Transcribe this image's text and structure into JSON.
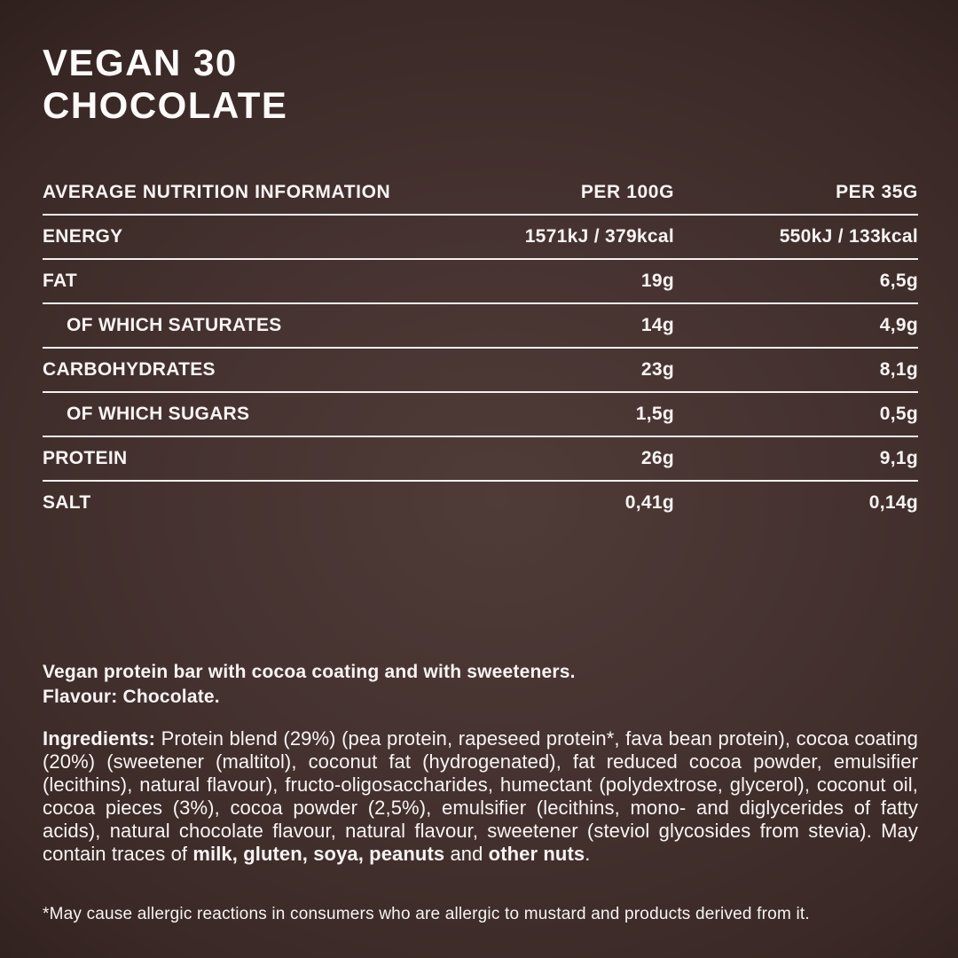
{
  "page": {
    "title_line1": "VEGAN 30",
    "title_line2": "CHOCOLATE"
  },
  "nutrition_table": {
    "header": {
      "label": "AVERAGE NUTRITION INFORMATION",
      "col_per_100g": "PER 100G",
      "col_per_35g": "PER 35G"
    },
    "rows": [
      {
        "label": "ENERGY",
        "per_100g": "1571kJ / 379kcal",
        "per_35g": "550kJ / 133kcal",
        "indent": false
      },
      {
        "label": "FAT",
        "per_100g": "19g",
        "per_35g": "6,5g",
        "indent": false
      },
      {
        "label": "OF WHICH SATURATES",
        "per_100g": "14g",
        "per_35g": "4,9g",
        "indent": true
      },
      {
        "label": "CARBOHYDRATES",
        "per_100g": "23g",
        "per_35g": "8,1g",
        "indent": false
      },
      {
        "label": "OF WHICH SUGARS",
        "per_100g": "1,5g",
        "per_35g": "0,5g",
        "indent": true
      },
      {
        "label": "PROTEIN",
        "per_100g": "26g",
        "per_35g": "9,1g",
        "indent": false
      },
      {
        "label": "SALT",
        "per_100g": "0,41g",
        "per_35g": "0,14g",
        "indent": false
      }
    ]
  },
  "description": {
    "line1": "Vegan protein bar with cocoa coating and with sweeteners.",
    "line2": "Flavour: Chocolate."
  },
  "ingredients": {
    "segments": [
      {
        "t": "Ingredients: ",
        "b": true
      },
      {
        "t": "Protein blend (29%) (pea protein, rapeseed protein*, fava bean protein), cocoa coating (20%) (sweetener (maltitol), coconut fat (hydrogenated), fat reduced cocoa powder, emulsifier (lecithins), natural flavour), fructo-oligosaccharides, humectant (polydextrose, glycerol), coconut oil, cocoa pieces (3%), cocoa powder (2,5%), emulsifier (lecithins, mono- and diglycerides of fatty acids), natural chocolate flavour, natural flavour, sweetener (steviol glycosides from stevia).  May contain traces of ",
        "b": false
      },
      {
        "t": "milk, gluten, soya, peanuts",
        "b": true
      },
      {
        "t": " and ",
        "b": false
      },
      {
        "t": "other nuts",
        "b": true
      },
      {
        "t": ".",
        "b": false
      }
    ]
  },
  "footnote": "*May cause allergic reactions in consumers who are allergic to mustard and products derived from it.",
  "colors": {
    "background_center": "#4f3b37",
    "background_edge": "#271815",
    "text": "#f8f4f3",
    "rule": "#f5f0ee"
  }
}
